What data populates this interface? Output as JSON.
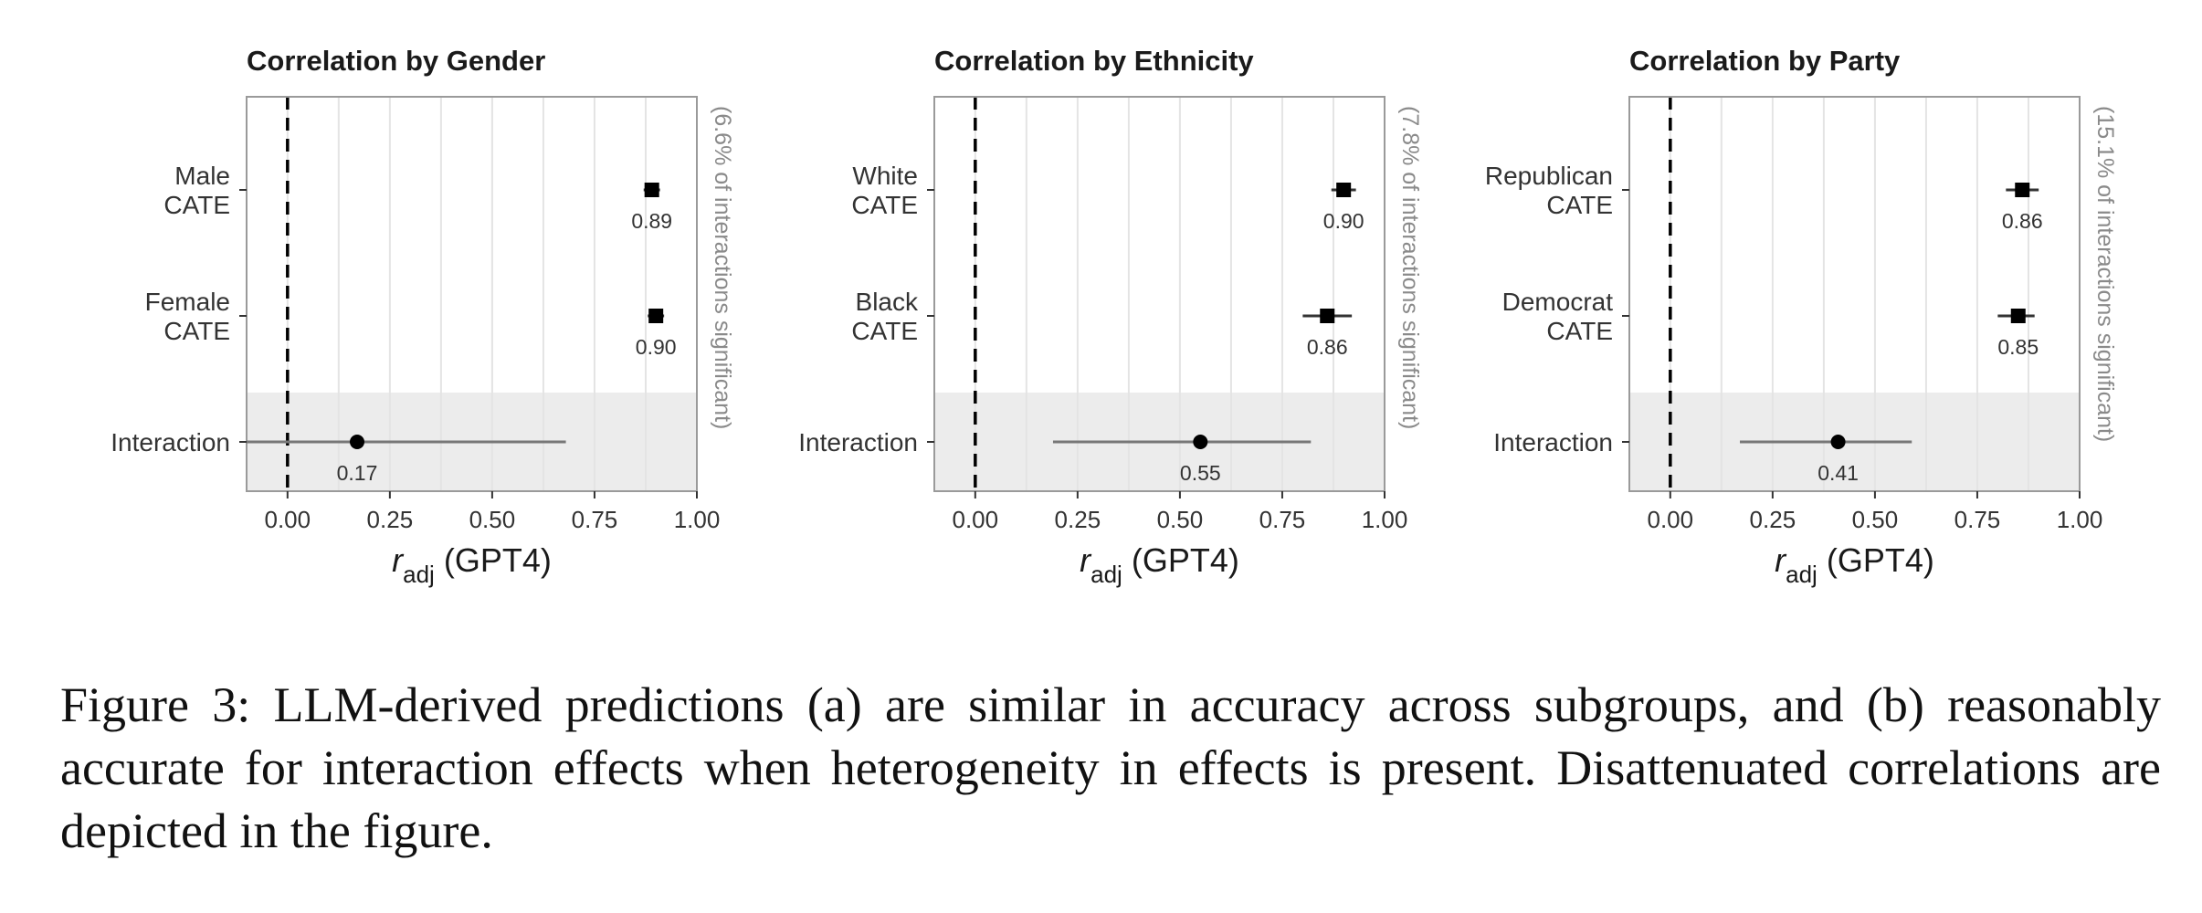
{
  "chart_data": [
    {
      "type": "forest",
      "title": "Correlation by Gender",
      "xlabel_main": "r",
      "xlabel_sub": "adj",
      "xlabel_rest": " (GPT4)",
      "side_label": "(6.6% of interactions significant)",
      "xlim": [
        -0.1,
        1.0
      ],
      "xticks": [
        "0.00",
        "0.25",
        "0.50",
        "0.75",
        "1.00"
      ],
      "xtick_values": [
        0,
        0.25,
        0.5,
        0.75,
        1.0
      ],
      "reference_line": 0,
      "rows": [
        {
          "label": [
            "Male",
            "CATE"
          ],
          "estimate": 0.89,
          "value_label": "0.89",
          "ci": [
            0.87,
            0.91
          ],
          "marker": "square",
          "shaded": false
        },
        {
          "label": [
            "Female",
            "CATE"
          ],
          "estimate": 0.9,
          "value_label": "0.90",
          "ci": [
            0.88,
            0.92
          ],
          "marker": "square",
          "shaded": false
        },
        {
          "label": [
            "Interaction"
          ],
          "estimate": 0.17,
          "value_label": "0.17",
          "ci": [
            -0.1,
            0.68
          ],
          "marker": "circle",
          "shaded": true
        }
      ]
    },
    {
      "type": "forest",
      "title": "Correlation by Ethnicity",
      "xlabel_main": "r",
      "xlabel_sub": "adj",
      "xlabel_rest": " (GPT4)",
      "side_label": "(7.8% of interactions significant)",
      "xlim": [
        -0.1,
        1.0
      ],
      "xticks": [
        "0.00",
        "0.25",
        "0.50",
        "0.75",
        "1.00"
      ],
      "xtick_values": [
        0,
        0.25,
        0.5,
        0.75,
        1.0
      ],
      "reference_line": 0,
      "rows": [
        {
          "label": [
            "White",
            "CATE"
          ],
          "estimate": 0.9,
          "value_label": "0.90",
          "ci": [
            0.87,
            0.93
          ],
          "marker": "square",
          "shaded": false
        },
        {
          "label": [
            "Black",
            "CATE"
          ],
          "estimate": 0.86,
          "value_label": "0.86",
          "ci": [
            0.8,
            0.92
          ],
          "marker": "square",
          "shaded": false
        },
        {
          "label": [
            "Interaction"
          ],
          "estimate": 0.55,
          "value_label": "0.55",
          "ci": [
            0.19,
            0.82
          ],
          "marker": "circle",
          "shaded": true
        }
      ]
    },
    {
      "type": "forest",
      "title": "Correlation by Party",
      "xlabel_main": "r",
      "xlabel_sub": "adj",
      "xlabel_rest": " (GPT4)",
      "side_label": "(15.1% of interactions significant)",
      "xlim": [
        -0.1,
        1.0
      ],
      "xticks": [
        "0.00",
        "0.25",
        "0.50",
        "0.75",
        "1.00"
      ],
      "xtick_values": [
        0,
        0.25,
        0.5,
        0.75,
        1.0
      ],
      "reference_line": 0,
      "rows": [
        {
          "label": [
            "Republican",
            "CATE"
          ],
          "estimate": 0.86,
          "value_label": "0.86",
          "ci": [
            0.82,
            0.9
          ],
          "marker": "square",
          "shaded": false
        },
        {
          "label": [
            "Democrat",
            "CATE"
          ],
          "estimate": 0.85,
          "value_label": "0.85",
          "ci": [
            0.8,
            0.89
          ],
          "marker": "square",
          "shaded": false
        },
        {
          "label": [
            "Interaction"
          ],
          "estimate": 0.41,
          "value_label": "0.41",
          "ci": [
            0.17,
            0.59
          ],
          "marker": "circle",
          "shaded": true
        }
      ]
    }
  ],
  "caption": "Figure 3:   LLM-derived predictions (a) are similar in accuracy across subgroups, and (b) reasonably accurate for interaction effects when heterogeneity in effects is present. Disattenuated correlations are depicted in the figure.",
  "colors": {
    "panel_border": "#9a9a9a",
    "gridline": "#e4e4e4",
    "shaded_band": "#ececec",
    "marker": "#000000",
    "ci_line": "#777777",
    "side_label": "#8a8a8a",
    "text": "#1a1a1a"
  }
}
